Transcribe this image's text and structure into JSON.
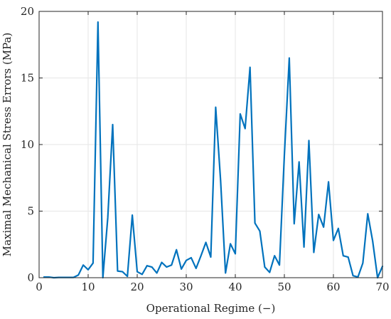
{
  "chart_data": {
    "type": "line",
    "title": "",
    "xlabel": "Operational Regime (−)",
    "ylabel": "Maximal Mechanical Stress Errors (MPa)",
    "xlim": [
      0,
      70
    ],
    "ylim": [
      0,
      20
    ],
    "xticks": [
      0,
      10,
      20,
      30,
      40,
      50,
      60,
      70
    ],
    "yticks": [
      0,
      5,
      10,
      15,
      20
    ],
    "grid": true,
    "legend": "none",
    "series": [
      {
        "color": "#0072BD",
        "x": [
          1,
          2,
          3,
          4,
          5,
          6,
          7,
          8,
          9,
          10,
          11,
          12,
          13,
          14,
          15,
          16,
          17,
          18,
          19,
          20,
          21,
          22,
          23,
          24,
          25,
          26,
          27,
          28,
          29,
          30,
          31,
          32,
          33,
          34,
          35,
          36,
          37,
          38,
          39,
          40,
          41,
          42,
          43,
          44,
          45,
          46,
          47,
          48,
          49,
          50,
          51,
          52,
          53,
          54,
          55,
          56,
          57,
          58,
          59,
          60,
          61,
          62,
          63,
          64,
          65,
          66,
          67,
          68,
          69,
          70
        ],
        "y": [
          0.05,
          0.05,
          0.0,
          0.02,
          0.02,
          0.02,
          0.02,
          0.2,
          0.95,
          0.6,
          1.1,
          19.2,
          0.0,
          4.5,
          11.5,
          0.5,
          0.45,
          0.1,
          4.7,
          0.45,
          0.25,
          0.9,
          0.8,
          0.35,
          1.15,
          0.8,
          0.95,
          2.1,
          0.65,
          1.3,
          1.5,
          0.7,
          1.65,
          2.65,
          1.55,
          12.8,
          7.3,
          0.35,
          2.55,
          1.8,
          12.3,
          11.2,
          15.8,
          4.1,
          3.5,
          0.8,
          0.4,
          1.65,
          0.95,
          9.2,
          16.5,
          4.05,
          8.7,
          2.3,
          10.3,
          1.9,
          4.75,
          3.8,
          7.2,
          2.8,
          3.7,
          1.65,
          1.55,
          0.15,
          0.05,
          1.1,
          4.8,
          2.75,
          0.0,
          0.85
        ]
      }
    ]
  }
}
